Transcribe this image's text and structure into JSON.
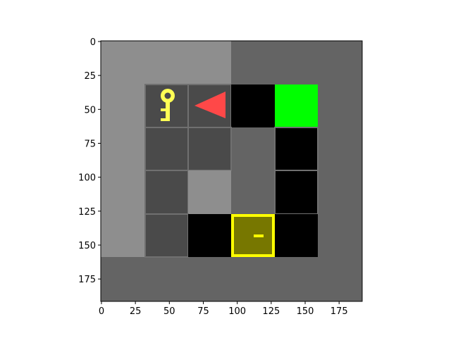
{
  "plot": {
    "x_ticks": [
      "0",
      "25",
      "50",
      "75",
      "100",
      "125",
      "150",
      "175"
    ],
    "y_ticks": [
      "0",
      "25",
      "50",
      "75",
      "100",
      "125",
      "150",
      "175"
    ],
    "x_tick_values": [
      0,
      25,
      50,
      75,
      100,
      125,
      150,
      175
    ],
    "y_tick_values": [
      0,
      25,
      50,
      75,
      100,
      125,
      150,
      175
    ],
    "extent": [
      0,
      192
    ]
  },
  "colors": {
    "outer_dark": "#646464",
    "outer_light": "#8e8e8e",
    "floor_tile": "#4a4a4a",
    "floor_line": "#707070",
    "wall": "#000000",
    "goal": "#00ff00",
    "agent": "#ff4848",
    "key": "#ffff55",
    "box_fill": "#777700",
    "box_border": "#ffff00"
  },
  "objects": {
    "key": "key-icon",
    "agent": "agent-triangle-icon",
    "goal": "goal-square",
    "box": "box-icon"
  }
}
